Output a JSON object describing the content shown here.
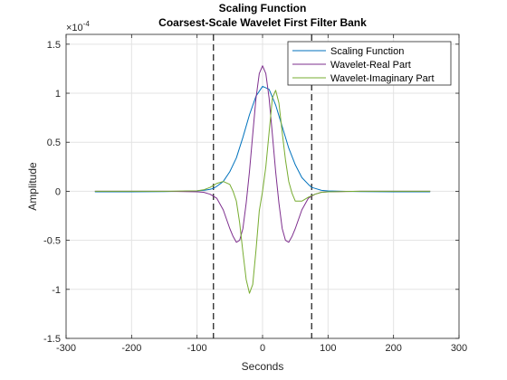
{
  "chart_data": {
    "type": "line",
    "title": "Scaling Function",
    "subtitle": "Coarsest-Scale Wavelet First Filter Bank",
    "xlabel": "Seconds",
    "ylabel": "Amplitude",
    "y_exponent_label": "×10",
    "y_exponent": "-4",
    "xlim": [
      -300,
      300
    ],
    "ylim": [
      -1.5,
      1.6
    ],
    "x_ticks": [
      -300,
      -200,
      -100,
      0,
      100,
      200,
      300
    ],
    "x_tick_labels": [
      "-300",
      "-200",
      "-100",
      "0",
      "100",
      "200",
      "300"
    ],
    "y_ticks": [
      -1.5,
      -1,
      -0.5,
      0,
      0.5,
      1,
      1.5
    ],
    "y_tick_labels": [
      "-1.5",
      "-1",
      "-0.5",
      "0",
      "0.5",
      "1",
      "1.5"
    ],
    "grid": true,
    "legend_position": "top-right",
    "vertical_lines": [
      -75,
      75
    ],
    "series": [
      {
        "name": "Scaling Function",
        "color": "#0072BD",
        "x": [
          -256,
          -200,
          -150,
          -120,
          -100,
          -90,
          -80,
          -75,
          -70,
          -60,
          -50,
          -40,
          -30,
          -20,
          -10,
          0,
          10,
          20,
          30,
          40,
          50,
          60,
          70,
          75,
          80,
          90,
          100,
          120,
          150,
          200,
          256
        ],
        "y": [
          -0.005,
          -0.005,
          -0.003,
          0.0,
          0.005,
          0.01,
          0.02,
          0.03,
          0.05,
          0.1,
          0.2,
          0.34,
          0.55,
          0.78,
          0.97,
          1.07,
          1.04,
          0.88,
          0.66,
          0.44,
          0.27,
          0.14,
          0.07,
          0.04,
          0.03,
          0.01,
          0.004,
          0.0,
          -0.003,
          -0.005,
          -0.005
        ]
      },
      {
        "name": "Wavelet-Real Part",
        "color": "#7E2F8E",
        "x": [
          -256,
          -200,
          -150,
          -100,
          -90,
          -80,
          -70,
          -60,
          -50,
          -45,
          -40,
          -35,
          -30,
          -25,
          -20,
          -15,
          -10,
          -5,
          0,
          5,
          10,
          15,
          20,
          25,
          30,
          35,
          40,
          45,
          50,
          60,
          70,
          80,
          90,
          100,
          150,
          200,
          256
        ],
        "y": [
          0,
          0,
          0,
          -0.005,
          -0.01,
          -0.03,
          -0.07,
          -0.19,
          -0.38,
          -0.46,
          -0.52,
          -0.5,
          -0.38,
          -0.12,
          0.2,
          0.58,
          0.95,
          1.2,
          1.28,
          1.2,
          0.95,
          0.58,
          0.2,
          -0.12,
          -0.38,
          -0.5,
          -0.52,
          -0.46,
          -0.38,
          -0.19,
          -0.07,
          -0.03,
          -0.01,
          -0.005,
          0,
          0,
          0
        ]
      },
      {
        "name": "Wavelet-Imaginary Part",
        "color": "#77AC30",
        "x": [
          -256,
          -200,
          -150,
          -100,
          -90,
          -80,
          -70,
          -60,
          -50,
          -45,
          -40,
          -35,
          -30,
          -25,
          -20,
          -15,
          -10,
          -5,
          0,
          5,
          10,
          15,
          20,
          25,
          30,
          35,
          40,
          45,
          50,
          60,
          70,
          80,
          90,
          100,
          150,
          200,
          256
        ],
        "y": [
          0,
          0,
          0,
          0.005,
          0.015,
          0.04,
          0.08,
          0.1,
          0.07,
          0.0,
          -0.1,
          -0.32,
          -0.62,
          -0.9,
          -1.04,
          -0.95,
          -0.6,
          -0.2,
          0.0,
          0.25,
          0.6,
          0.95,
          1.03,
          0.9,
          0.6,
          0.32,
          0.1,
          -0.02,
          -0.1,
          -0.1,
          -0.06,
          -0.03,
          -0.01,
          -0.005,
          0,
          0,
          0
        ]
      }
    ]
  }
}
